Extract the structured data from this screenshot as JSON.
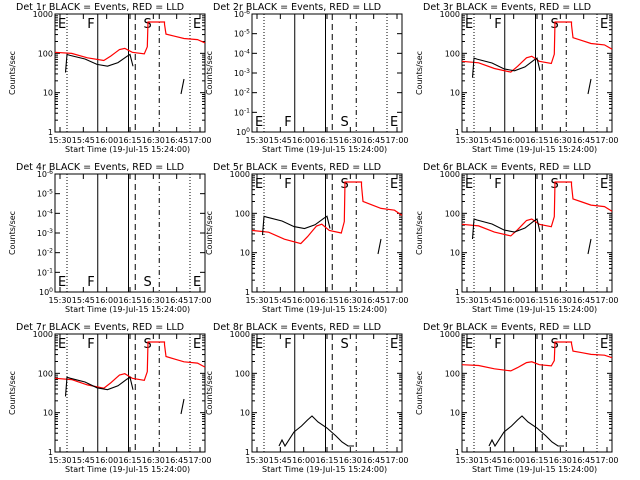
{
  "figure": {
    "type": "grid",
    "rows": 3,
    "cols": 3,
    "xtick_labels": [
      "15:30",
      "15:45",
      "16:00",
      "16:15",
      "16:30",
      "16:45",
      "17:00"
    ],
    "xlabel": "Start Time (19-Jul-15 15:24:00)",
    "ylabel": "Counts/sec",
    "line_colors": {
      "events": "#000000",
      "lld": "#ff0000"
    },
    "markers": [
      "E",
      "F",
      "S",
      "E"
    ]
  },
  "chart_data": [
    {
      "type": "line",
      "title": "Det 1r BLACK = Events, RED = LLD",
      "yscale": "log",
      "ylim": [
        1,
        1000
      ],
      "ytick_labels": [
        "1",
        "10",
        "100",
        "1000"
      ],
      "has_data": true,
      "lld_level": 1.0,
      "evt_level": 1.0
    },
    {
      "type": "line",
      "title": "Det 2r BLACK = Events, RED = LLD",
      "yscale": "log",
      "ylim": [
        1e-06,
        1
      ],
      "ytick_labels": [
        "10^0",
        "10^-1",
        "10^-2",
        "10^-3",
        "10^-4",
        "10^-5",
        "10^-6"
      ],
      "has_data": false
    },
    {
      "type": "line",
      "title": "Det 3r BLACK = Events, RED = LLD",
      "yscale": "log",
      "ylim": [
        1,
        1000
      ],
      "ytick_labels": [
        "1",
        "10",
        "100",
        "1000"
      ],
      "has_data": true,
      "lld_level": 1.3,
      "evt_level": 0.6
    },
    {
      "type": "line",
      "title": "Det 4r BLACK = Events, RED = LLD",
      "yscale": "log",
      "ylim": [
        1e-06,
        1
      ],
      "ytick_labels": [
        "10^0",
        "10^-1",
        "10^-2",
        "10^-3",
        "10^-4",
        "10^-5",
        "10^-6"
      ],
      "has_data": false
    },
    {
      "type": "line",
      "title": "Det 5r BLACK = Events, RED = LLD",
      "yscale": "log",
      "ylim": [
        1,
        1000
      ],
      "ytick_labels": [
        "1",
        "10",
        "100",
        "1000"
      ],
      "has_data": true,
      "lld_level": 1.6,
      "evt_level": 0.8
    },
    {
      "type": "line",
      "title": "Det 6r BLACK = Events, RED = LLD",
      "yscale": "log",
      "ylim": [
        1,
        1000
      ],
      "ytick_labels": [
        "1",
        "10",
        "100",
        "1000"
      ],
      "has_data": true,
      "lld_level": 1.4,
      "evt_level": 0.5
    },
    {
      "type": "line",
      "title": "Det 7r BLACK = Events, RED = LLD",
      "yscale": "log",
      "ylim": [
        1,
        1000
      ],
      "ytick_labels": [
        "1",
        "10",
        "100",
        "1000"
      ],
      "has_data": true,
      "lld_level": 1.2,
      "evt_level": 0.7
    },
    {
      "type": "line",
      "title": "Det 8r BLACK = Events, RED = LLD",
      "yscale": "log",
      "ylim": [
        1,
        1000
      ],
      "ytick_labels": [
        "1",
        "10",
        "100",
        "1000"
      ],
      "has_data": true,
      "lld_level": 0,
      "evt_level": 0.02
    },
    {
      "type": "line",
      "title": "Det 9r BLACK = Events, RED = LLD",
      "yscale": "log",
      "ylim": [
        1,
        1000
      ],
      "ytick_labels": [
        "1",
        "10",
        "100",
        "1000"
      ],
      "has_data": true,
      "lld_level": 0.75,
      "evt_level": 0.03
    }
  ]
}
